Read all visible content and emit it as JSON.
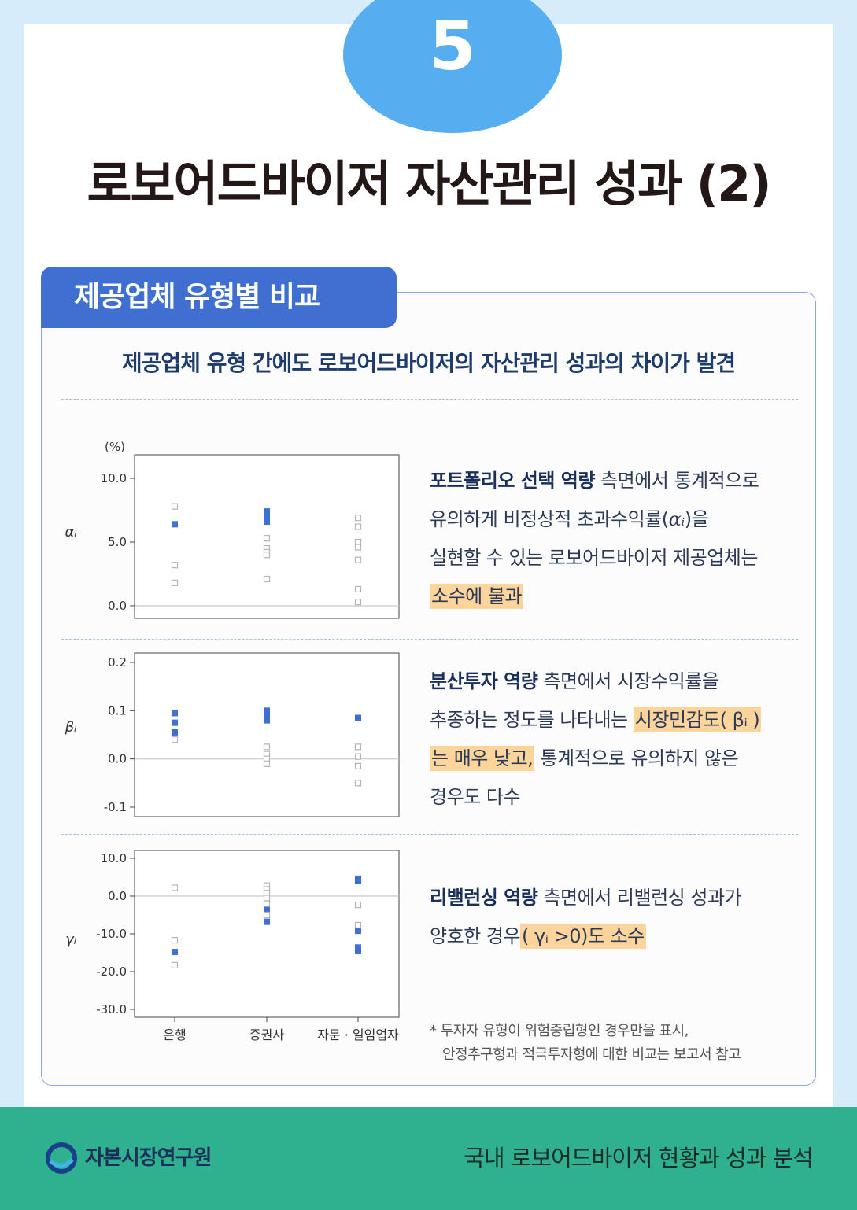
{
  "badge_number": "5",
  "title": "로보어드바이저 자산관리 성과 (2)",
  "section_tab": "제공업체 유형별 비교",
  "subtitle": "제공업체 유형 간에도 로보어드바이저의 자산관리 성과의 차이가 발견",
  "desc1": {
    "bold": "포트폴리오 선택 역량",
    "t1": " 측면에서 통계적으로",
    "t2": "유의하게 비정상적 초과수익률(",
    "sym": "αᵢ",
    "t3": ")을",
    "t4": "실현할 수 있는 로보어드바이저 제공업체는",
    "hl": "소수에 불과"
  },
  "desc2": {
    "bold": "분산투자 역량",
    "t1": " 측면에서 시장수익률을",
    "t2": "추종하는 정도를 나타내는 ",
    "hl1": "시장민감도( βᵢ )",
    "hl2": "는 매우 낮고,",
    "t3": " 통계적으로 유의하지 않은",
    "t4": "경우도 다수"
  },
  "desc3": {
    "bold": "리밸런싱 역량",
    "t1": " 측면에서 리밸런싱 성과가",
    "t2": "양호한 경우",
    "hl": "( γᵢ >0)도 소수"
  },
  "note": {
    "line1": "* 투자자 유형이 위험중립형인 경우만을 표시,",
    "line2": "안정추구형과 적극투자형에 대한 비교는 보고서 참고"
  },
  "footer": {
    "org": "자본시장연구원",
    "report": "국내 로보어드바이저 현황과 성과 분석"
  },
  "colors": {
    "significant": "#3f6fd0",
    "insignificant": "#b5b5b5",
    "accent": "#3f6fd0",
    "footer": "#2fb08e",
    "highlight": "#fdd49b"
  },
  "chart_data": [
    {
      "type": "scatter",
      "ylabel": "αᵢ",
      "unit": "(%)",
      "ylim": [
        0,
        10
      ],
      "yticks": [
        "10.0",
        "5.0",
        "0.0"
      ],
      "ytick_values": [
        10,
        5,
        0
      ],
      "categories": [
        "은행",
        "증권사",
        "자문 · 일임업자"
      ],
      "series": [
        {
          "marker": "filled-square",
          "points": [
            [
              0,
              6.4
            ],
            [
              1,
              7.4
            ],
            [
              1,
              7.1
            ],
            [
              1,
              6.9
            ],
            [
              1,
              6.6
            ]
          ]
        },
        {
          "marker": "open-square",
          "points": [
            [
              0,
              7.8
            ],
            [
              0,
              3.2
            ],
            [
              0,
              1.8
            ],
            [
              1,
              5.3
            ],
            [
              1,
              4.5
            ],
            [
              1,
              4.2
            ],
            [
              1,
              4.0
            ],
            [
              1,
              2.1
            ],
            [
              2,
              6.9
            ],
            [
              2,
              6.2
            ],
            [
              2,
              5.0
            ],
            [
              2,
              4.6
            ],
            [
              2,
              3.6
            ],
            [
              2,
              1.3
            ],
            [
              2,
              0.3
            ]
          ]
        }
      ]
    },
    {
      "type": "scatter",
      "ylabel": "βᵢ",
      "ylim": [
        -0.1,
        0.2
      ],
      "yticks": [
        "0.2",
        "0.1",
        "0.0",
        "-0.1"
      ],
      "ytick_values": [
        0.2,
        0.1,
        0,
        -0.1
      ],
      "categories": [
        "은행",
        "증권사",
        "자문 · 일임업자"
      ],
      "series": [
        {
          "marker": "filled-square",
          "points": [
            [
              0,
              0.095
            ],
            [
              0,
              0.075
            ],
            [
              0,
              0.055
            ],
            [
              1,
              0.1
            ],
            [
              1,
              0.09
            ],
            [
              1,
              0.08
            ],
            [
              2,
              0.085
            ]
          ]
        },
        {
          "marker": "open-square",
          "points": [
            [
              0,
              0.04
            ],
            [
              1,
              0.025
            ],
            [
              1,
              0.01
            ],
            [
              1,
              0.0
            ],
            [
              1,
              -0.01
            ],
            [
              2,
              0.025
            ],
            [
              2,
              0.005
            ],
            [
              2,
              -0.015
            ],
            [
              2,
              -0.05
            ]
          ]
        }
      ]
    },
    {
      "type": "scatter",
      "ylabel": "γᵢ",
      "ylim": [
        -30,
        10
      ],
      "yticks": [
        "10.0",
        "0.0",
        "-10.0",
        "-20.0",
        "-30.0"
      ],
      "ytick_values": [
        10,
        0,
        -10,
        -20,
        -30
      ],
      "categories": [
        "은행",
        "증권사",
        "자문 · 일임업자"
      ],
      "series": [
        {
          "marker": "filled-square",
          "points": [
            [
              0,
              -14.8
            ],
            [
              1,
              -3.0
            ],
            [
              1,
              -4.0
            ],
            [
              1,
              -6.8
            ],
            [
              2,
              4.0
            ],
            [
              2,
              4.6
            ],
            [
              2,
              -9.2
            ],
            [
              2,
              -13.6
            ],
            [
              2,
              -14.4
            ]
          ]
        },
        {
          "marker": "open-square",
          "points": [
            [
              0,
              2.2
            ],
            [
              0,
              -11.7
            ],
            [
              0,
              -18.3
            ],
            [
              1,
              2.8
            ],
            [
              1,
              1.8
            ],
            [
              1,
              0.8
            ],
            [
              1,
              -0.5
            ],
            [
              1,
              -2.0
            ],
            [
              1,
              -5.0
            ],
            [
              2,
              -2.3
            ],
            [
              2,
              -7.7
            ]
          ]
        }
      ]
    }
  ]
}
